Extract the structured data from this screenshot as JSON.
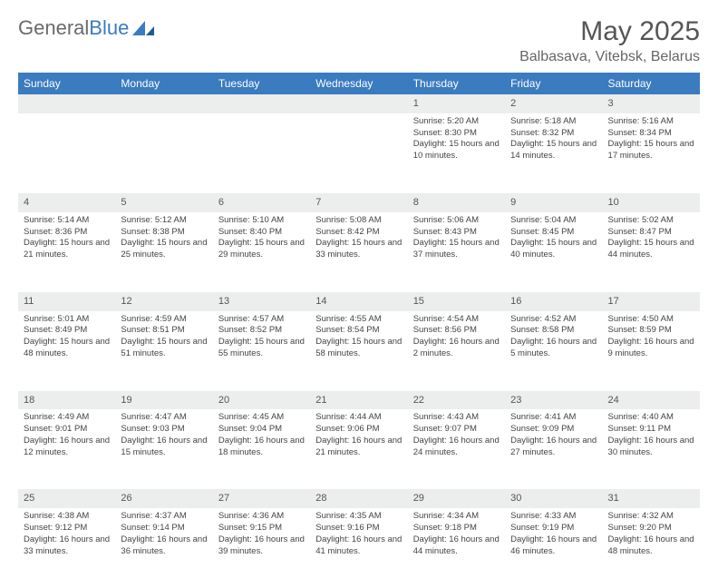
{
  "brand": {
    "word1": "General",
    "word2": "Blue"
  },
  "title": "May 2025",
  "location": "Balbasava, Vitebsk, Belarus",
  "headers_bg": "#3b7bbf",
  "daynum_bg": "#eceded",
  "text_color": "#444444",
  "weekdays": [
    "Sunday",
    "Monday",
    "Tuesday",
    "Wednesday",
    "Thursday",
    "Friday",
    "Saturday"
  ],
  "weeks": [
    [
      null,
      null,
      null,
      null,
      {
        "n": "1",
        "sr": "5:20 AM",
        "ss": "8:30 PM",
        "dl": "Daylight: 15 hours and 10 minutes."
      },
      {
        "n": "2",
        "sr": "5:18 AM",
        "ss": "8:32 PM",
        "dl": "Daylight: 15 hours and 14 minutes."
      },
      {
        "n": "3",
        "sr": "5:16 AM",
        "ss": "8:34 PM",
        "dl": "Daylight: 15 hours and 17 minutes."
      }
    ],
    [
      {
        "n": "4",
        "sr": "5:14 AM",
        "ss": "8:36 PM",
        "dl": "Daylight: 15 hours and 21 minutes."
      },
      {
        "n": "5",
        "sr": "5:12 AM",
        "ss": "8:38 PM",
        "dl": "Daylight: 15 hours and 25 minutes."
      },
      {
        "n": "6",
        "sr": "5:10 AM",
        "ss": "8:40 PM",
        "dl": "Daylight: 15 hours and 29 minutes."
      },
      {
        "n": "7",
        "sr": "5:08 AM",
        "ss": "8:42 PM",
        "dl": "Daylight: 15 hours and 33 minutes."
      },
      {
        "n": "8",
        "sr": "5:06 AM",
        "ss": "8:43 PM",
        "dl": "Daylight: 15 hours and 37 minutes."
      },
      {
        "n": "9",
        "sr": "5:04 AM",
        "ss": "8:45 PM",
        "dl": "Daylight: 15 hours and 40 minutes."
      },
      {
        "n": "10",
        "sr": "5:02 AM",
        "ss": "8:47 PM",
        "dl": "Daylight: 15 hours and 44 minutes."
      }
    ],
    [
      {
        "n": "11",
        "sr": "5:01 AM",
        "ss": "8:49 PM",
        "dl": "Daylight: 15 hours and 48 minutes."
      },
      {
        "n": "12",
        "sr": "4:59 AM",
        "ss": "8:51 PM",
        "dl": "Daylight: 15 hours and 51 minutes."
      },
      {
        "n": "13",
        "sr": "4:57 AM",
        "ss": "8:52 PM",
        "dl": "Daylight: 15 hours and 55 minutes."
      },
      {
        "n": "14",
        "sr": "4:55 AM",
        "ss": "8:54 PM",
        "dl": "Daylight: 15 hours and 58 minutes."
      },
      {
        "n": "15",
        "sr": "4:54 AM",
        "ss": "8:56 PM",
        "dl": "Daylight: 16 hours and 2 minutes."
      },
      {
        "n": "16",
        "sr": "4:52 AM",
        "ss": "8:58 PM",
        "dl": "Daylight: 16 hours and 5 minutes."
      },
      {
        "n": "17",
        "sr": "4:50 AM",
        "ss": "8:59 PM",
        "dl": "Daylight: 16 hours and 9 minutes."
      }
    ],
    [
      {
        "n": "18",
        "sr": "4:49 AM",
        "ss": "9:01 PM",
        "dl": "Daylight: 16 hours and 12 minutes."
      },
      {
        "n": "19",
        "sr": "4:47 AM",
        "ss": "9:03 PM",
        "dl": "Daylight: 16 hours and 15 minutes."
      },
      {
        "n": "20",
        "sr": "4:45 AM",
        "ss": "9:04 PM",
        "dl": "Daylight: 16 hours and 18 minutes."
      },
      {
        "n": "21",
        "sr": "4:44 AM",
        "ss": "9:06 PM",
        "dl": "Daylight: 16 hours and 21 minutes."
      },
      {
        "n": "22",
        "sr": "4:43 AM",
        "ss": "9:07 PM",
        "dl": "Daylight: 16 hours and 24 minutes."
      },
      {
        "n": "23",
        "sr": "4:41 AM",
        "ss": "9:09 PM",
        "dl": "Daylight: 16 hours and 27 minutes."
      },
      {
        "n": "24",
        "sr": "4:40 AM",
        "ss": "9:11 PM",
        "dl": "Daylight: 16 hours and 30 minutes."
      }
    ],
    [
      {
        "n": "25",
        "sr": "4:38 AM",
        "ss": "9:12 PM",
        "dl": "Daylight: 16 hours and 33 minutes."
      },
      {
        "n": "26",
        "sr": "4:37 AM",
        "ss": "9:14 PM",
        "dl": "Daylight: 16 hours and 36 minutes."
      },
      {
        "n": "27",
        "sr": "4:36 AM",
        "ss": "9:15 PM",
        "dl": "Daylight: 16 hours and 39 minutes."
      },
      {
        "n": "28",
        "sr": "4:35 AM",
        "ss": "9:16 PM",
        "dl": "Daylight: 16 hours and 41 minutes."
      },
      {
        "n": "29",
        "sr": "4:34 AM",
        "ss": "9:18 PM",
        "dl": "Daylight: 16 hours and 44 minutes."
      },
      {
        "n": "30",
        "sr": "4:33 AM",
        "ss": "9:19 PM",
        "dl": "Daylight: 16 hours and 46 minutes."
      },
      {
        "n": "31",
        "sr": "4:32 AM",
        "ss": "9:20 PM",
        "dl": "Daylight: 16 hours and 48 minutes."
      }
    ]
  ],
  "labels": {
    "sunrise": "Sunrise:",
    "sunset": "Sunset:"
  }
}
